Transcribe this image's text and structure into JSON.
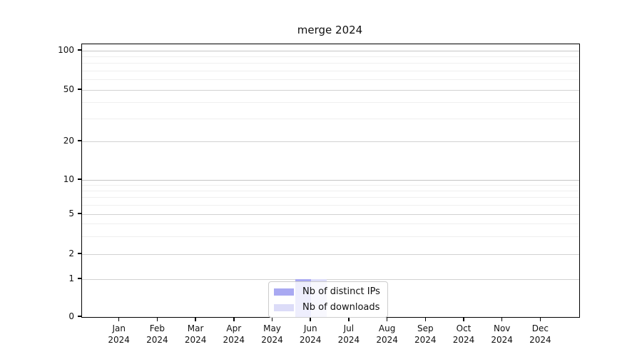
{
  "chart_data": {
    "type": "bar",
    "title": "merge 2024",
    "x_axis": {
      "months": [
        "Jan",
        "Feb",
        "Mar",
        "Apr",
        "May",
        "Jun",
        "Jul",
        "Aug",
        "Sep",
        "Oct",
        "Nov",
        "Dec"
      ],
      "year": "2024"
    },
    "y_axis": {
      "scale": "symlog",
      "ticks": [
        0,
        1,
        2,
        5,
        10,
        20,
        50,
        100
      ],
      "minor_ticks": [
        3,
        4,
        6,
        7,
        8,
        9,
        30,
        40,
        60,
        70,
        80,
        90
      ],
      "ylim": [
        0,
        100
      ],
      "grid": "both"
    },
    "series": [
      {
        "name": "Nb of distinct IPs",
        "color": "#a9a9f2",
        "values": [
          0,
          0,
          0,
          0,
          0,
          1,
          0,
          0,
          0,
          0,
          0,
          0
        ]
      },
      {
        "name": "Nb of downloads",
        "color": "#dcdcf8",
        "values": [
          0,
          0,
          0,
          0,
          0,
          1,
          0,
          0,
          0,
          0,
          0,
          0
        ]
      }
    ],
    "legend": {
      "position": "lower center"
    }
  }
}
